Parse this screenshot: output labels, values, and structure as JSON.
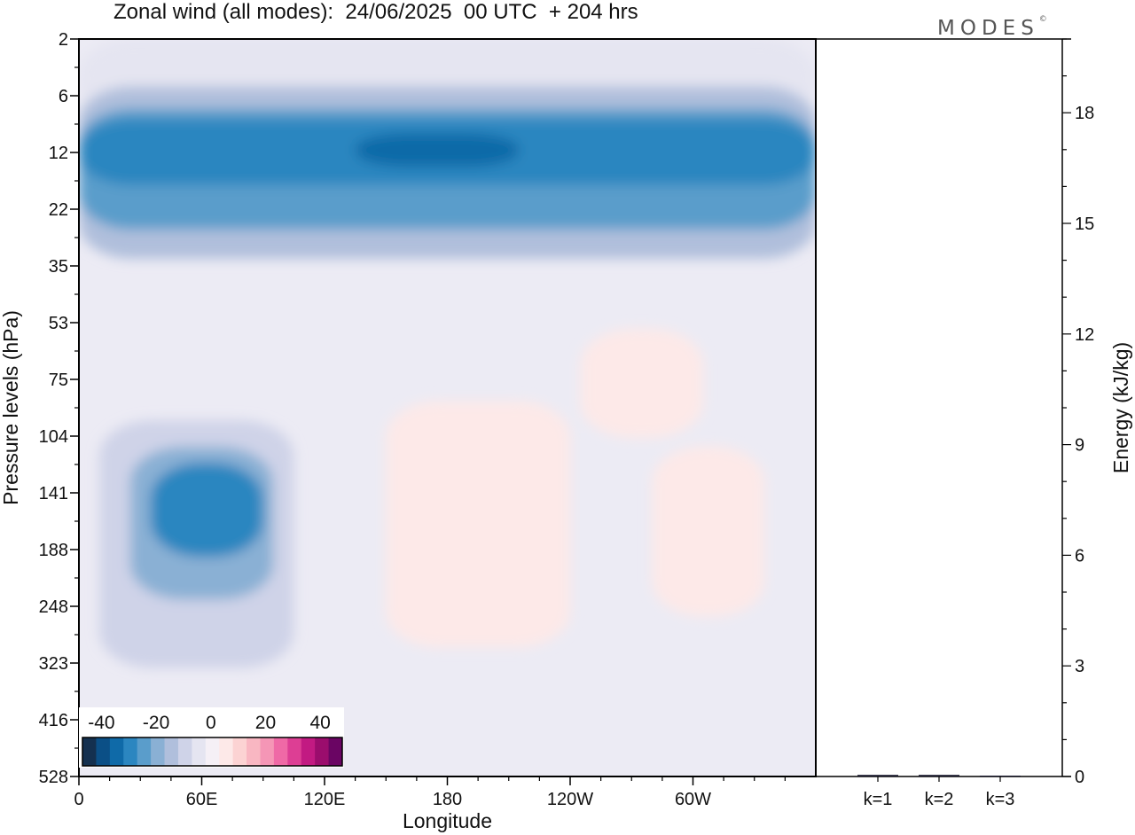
{
  "header": {
    "title": "Zonal wind (all modes):  24/06/2025  00 UTC  + 204 hrs",
    "logo": "MODES",
    "logo_mark": "©"
  },
  "chart_data": [
    {
      "type": "heatmap",
      "title": "Zonal wind (all modes):  24/06/2025  00 UTC  + 204 hrs",
      "xlabel": "Longitude",
      "ylabel": "Pressure levels (hPa)",
      "x_ticks": [
        "0",
        "60E",
        "120E",
        "180",
        "120W",
        "60W"
      ],
      "y_ticks": [
        "2",
        "6",
        "12",
        "22",
        "35",
        "53",
        "75",
        "104",
        "141",
        "188",
        "248",
        "323",
        "416",
        "528"
      ],
      "colorbar": {
        "tick_labels": [
          "-40",
          "-20",
          "0",
          "20",
          "40"
        ],
        "levels": [
          -45,
          -40,
          -35,
          -30,
          -25,
          -20,
          -15,
          -10,
          -5,
          0,
          5,
          10,
          15,
          20,
          25,
          30,
          35,
          40,
          45
        ],
        "colors": [
          "#14304f",
          "#0b4f86",
          "#0f6aa8",
          "#2b86c0",
          "#5a9dcb",
          "#8ab0d4",
          "#b0bfdc",
          "#cfd3e8",
          "#e5e5f1",
          "#f5f0f6",
          "#fde9e8",
          "#fcd3d3",
          "#f9b7c2",
          "#f596b6",
          "#ef69a6",
          "#dd3e94",
          "#c21a82",
          "#9b0d6d",
          "#6a0563"
        ]
      },
      "regions": [
        {
          "level": -5,
          "lon": [
            0,
            360
          ],
          "p": [
            2,
            8
          ]
        },
        {
          "level": -15,
          "lon": [
            0,
            360
          ],
          "p": [
            5,
            33
          ]
        },
        {
          "level": -25,
          "lon": [
            0,
            360
          ],
          "p": [
            7,
            26
          ]
        },
        {
          "level": -30,
          "lon": [
            0,
            360
          ],
          "p": [
            8,
            17
          ]
        },
        {
          "level": -35,
          "lon": [
            135,
            215
          ],
          "p": [
            9.5,
            14
          ]
        },
        {
          "level": -10,
          "lon": [
            10,
            105
          ],
          "p": [
            95,
            330
          ]
        },
        {
          "level": -20,
          "lon": [
            25,
            95
          ],
          "p": [
            110,
            240
          ]
        },
        {
          "level": -30,
          "lon": [
            35,
            90
          ],
          "p": [
            120,
            195
          ]
        },
        {
          "level": 5,
          "lon": [
            150,
            240
          ],
          "p": [
            85,
            300
          ]
        },
        {
          "level": 5,
          "lon": [
            280,
            335
          ],
          "p": [
            110,
            260
          ]
        },
        {
          "level": 5,
          "lon": [
            245,
            305
          ],
          "p": [
            55,
            105
          ]
        }
      ]
    },
    {
      "type": "bar",
      "ylabel": "Energy (kJ/kg)",
      "categories": [
        "k=1",
        "k=2",
        "k=3"
      ],
      "values": [
        0.02,
        0.02,
        0.0
      ],
      "ylim": [
        0,
        20
      ],
      "y_ticks": [
        "0",
        "3",
        "6",
        "9",
        "12",
        "15",
        "18"
      ]
    }
  ]
}
